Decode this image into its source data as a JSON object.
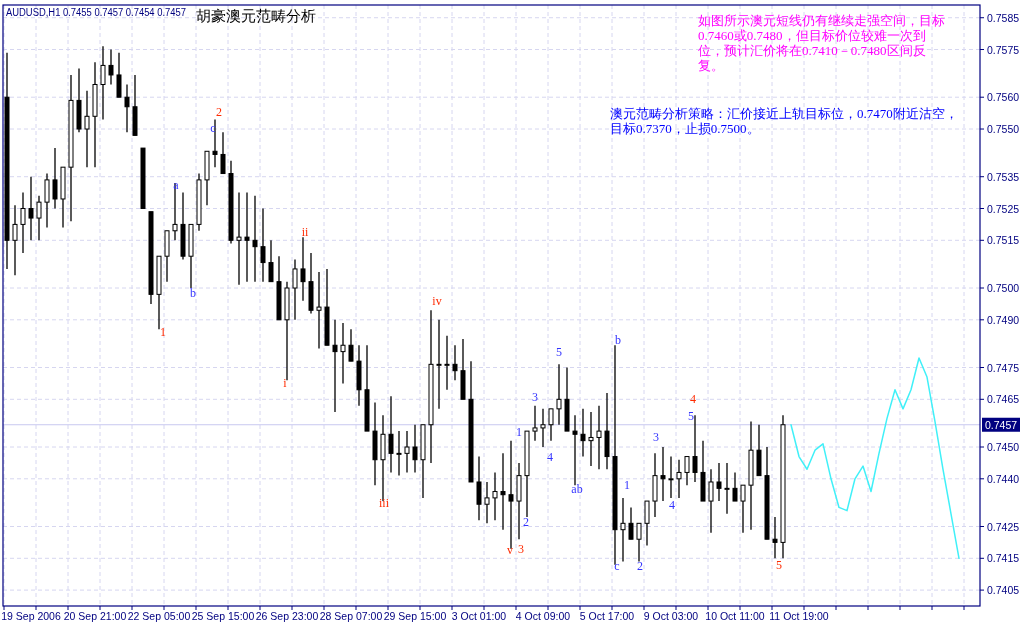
{
  "chart_data": {
    "type": "candlestick",
    "title": "胡豪澳元范畴分析",
    "subtitle": "AUDUSD,H1  0.7455 0.7457 0.7454 0.7457",
    "color": "#000000",
    "grid": true,
    "ylim": [
      0.74,
      0.7589
    ],
    "yticks": [
      0.7585,
      0.7575,
      {
        "value": 0.756,
        "label": "0.7560"
      },
      {
        "value": 0.755,
        "label": "0.7550"
      },
      0.7535,
      0.7525,
      0.7515,
      {
        "value": 0.75,
        "label": "0.7500"
      },
      {
        "value": 0.749,
        "label": "0.7490"
      },
      0.7475,
      0.7465,
      {
        "value": 0.745,
        "label": "0.7450"
      },
      {
        "value": 0.744,
        "label": "0.7440"
      },
      0.7425,
      0.7415,
      0.7405
    ],
    "ref_lines": [
      {
        "axis": "y",
        "value": 0.7457,
        "label": "0.7457",
        "color": "#c8c8f0"
      }
    ],
    "categories": [
      null,
      null,
      null,
      "19 Sep 2006",
      null,
      null,
      null,
      null,
      null,
      null,
      null,
      "20 Sep 21:00",
      null,
      null,
      null,
      null,
      null,
      null,
      null,
      "22 Sep 05:00",
      null,
      null,
      null,
      null,
      null,
      null,
      null,
      "25 Sep 15:00",
      null,
      null,
      null,
      null,
      null,
      null,
      null,
      "26 Sep 23:00",
      null,
      null,
      null,
      null,
      null,
      null,
      null,
      "28 Sep 07:00",
      null,
      null,
      null,
      null,
      null,
      null,
      null,
      "29 Sep 15:00",
      null,
      null,
      null,
      null,
      null,
      null,
      null,
      "3 Oct 01:00",
      null,
      null,
      null,
      null,
      null,
      null,
      null,
      "4 Oct 09:00",
      null,
      null,
      null,
      null,
      null,
      null,
      null,
      "5 Oct 17:00",
      null,
      null,
      null,
      null,
      null,
      null,
      null,
      "9 Oct 03:00",
      null,
      null,
      null,
      null,
      null,
      null,
      null,
      "10 Oct 11:00",
      null,
      null,
      null,
      null,
      null,
      null,
      null,
      "11 Oct 19:00",
      null,
      null,
      null,
      null,
      null,
      null,
      null,
      null,
      null,
      null,
      null,
      null,
      null,
      null,
      null,
      null,
      null,
      null,
      null,
      null,
      null,
      null
    ],
    "ohlc": [
      [
        0.756,
        0.7574,
        0.7506,
        0.7515
      ],
      [
        0.7515,
        0.7526,
        0.7504,
        0.752
      ],
      [
        0.752,
        0.753,
        0.7511,
        0.7525
      ],
      [
        0.7525,
        0.7535,
        0.7515,
        0.7522
      ],
      [
        0.7522,
        0.7529,
        0.7515,
        0.7527
      ],
      [
        0.7527,
        0.7536,
        0.7519,
        0.7534
      ],
      [
        0.7534,
        0.7544,
        0.7525,
        0.7528
      ],
      [
        0.7528,
        0.7538,
        0.7519,
        0.7538
      ],
      [
        0.7538,
        0.7567,
        0.7521,
        0.7559
      ],
      [
        0.7559,
        0.7569,
        0.7549,
        0.755
      ],
      [
        0.755,
        0.7562,
        0.7538,
        0.7554
      ],
      [
        0.7554,
        0.7571,
        0.7538,
        0.7564
      ],
      [
        0.7564,
        0.7576,
        0.7553,
        0.757
      ],
      [
        0.757,
        0.7575,
        0.7564,
        0.7567
      ],
      [
        0.7567,
        0.7574,
        0.756,
        0.756
      ],
      [
        0.756,
        0.7564,
        0.7549,
        0.7557
      ],
      [
        0.7557,
        0.7567,
        0.7548,
        0.7548
      ],
      [
        0.7544,
        0.7544,
        0.7525,
        0.7525
      ],
      [
        0.7524,
        0.7524,
        0.7495,
        0.7498
      ],
      [
        0.7498,
        0.751,
        0.7487,
        0.751
      ],
      [
        0.751,
        0.7518,
        0.7502,
        0.7518
      ],
      [
        0.7518,
        0.7533,
        0.7515,
        0.752
      ],
      [
        0.752,
        0.753,
        0.7509,
        0.751
      ],
      [
        0.751,
        0.752,
        0.75,
        0.752
      ],
      [
        0.752,
        0.7536,
        0.7518,
        0.7534
      ],
      [
        0.7534,
        0.7543,
        0.7526,
        0.7543
      ],
      [
        0.7543,
        0.7553,
        0.7538,
        0.7542
      ],
      [
        0.7542,
        0.7549,
        0.7536,
        0.7536
      ],
      [
        0.7536,
        0.754,
        0.7514,
        0.7515
      ],
      [
        0.7515,
        0.753,
        0.7501,
        0.7516
      ],
      [
        0.7516,
        0.753,
        0.7502,
        0.7515
      ],
      [
        0.7515,
        0.7529,
        0.7502,
        0.7513
      ],
      [
        0.7513,
        0.7525,
        0.7502,
        0.7508
      ],
      [
        0.7508,
        0.7515,
        0.7502,
        0.7502
      ],
      [
        0.7502,
        0.751,
        0.749,
        0.749
      ],
      [
        0.749,
        0.7502,
        0.7471,
        0.75
      ],
      [
        0.75,
        0.7509,
        0.749,
        0.7506
      ],
      [
        0.7506,
        0.7516,
        0.7496,
        0.7502
      ],
      [
        0.7502,
        0.7511,
        0.7492,
        0.7493
      ],
      [
        0.7493,
        0.7505,
        0.7481,
        0.7494
      ],
      [
        0.7494,
        0.7506,
        0.7482,
        0.7482
      ],
      [
        0.7482,
        0.749,
        0.7461,
        0.748
      ],
      [
        0.748,
        0.7489,
        0.747,
        0.7482
      ],
      [
        0.7482,
        0.7487,
        0.7477,
        0.7477
      ],
      [
        0.7477,
        0.7482,
        0.7463,
        0.7468
      ],
      [
        0.7468,
        0.7482,
        0.7455,
        0.7455
      ],
      [
        0.7455,
        0.7464,
        0.7438,
        0.7446
      ],
      [
        0.7446,
        0.746,
        0.7433,
        0.7454
      ],
      [
        0.7454,
        0.7466,
        0.7442,
        0.7448
      ],
      [
        0.7448,
        0.7455,
        0.7441,
        0.7448
      ],
      [
        0.7448,
        0.7455,
        0.7442,
        0.745
      ],
      [
        0.745,
        0.7457,
        0.7442,
        0.7446
      ],
      [
        0.7446,
        0.7457,
        0.7434,
        0.7457
      ],
      [
        0.7457,
        0.7493,
        0.7445,
        0.7476
      ],
      [
        0.7476,
        0.749,
        0.7462,
        0.7476
      ],
      [
        0.7476,
        0.7485,
        0.7468,
        0.7476
      ],
      [
        0.7476,
        0.7482,
        0.7471,
        0.7474
      ],
      [
        0.7474,
        0.7484,
        0.7465,
        0.7465
      ],
      [
        0.7465,
        0.7477,
        0.7439,
        0.7439
      ],
      [
        0.7439,
        0.7447,
        0.7427,
        0.7432
      ],
      [
        0.7432,
        0.7439,
        0.7426,
        0.7434
      ],
      [
        0.7434,
        0.7442,
        0.7427,
        0.7436
      ],
      [
        0.7436,
        0.7448,
        0.7424,
        0.7435
      ],
      [
        0.7435,
        0.7452,
        0.7418,
        0.7433
      ],
      [
        0.7433,
        0.7445,
        0.7421,
        0.7441
      ],
      [
        0.7441,
        0.7455,
        0.7428,
        0.7455
      ],
      [
        0.7455,
        0.7463,
        0.7452,
        0.7456
      ],
      [
        0.7456,
        0.7462,
        0.745,
        0.7457
      ],
      [
        0.7457,
        0.7462,
        0.7452,
        0.7462
      ],
      [
        0.7462,
        0.7476,
        0.7457,
        0.7465
      ],
      [
        0.7465,
        0.7475,
        0.7455,
        0.7455
      ],
      [
        0.7455,
        0.746,
        0.7438,
        0.7454
      ],
      [
        0.7454,
        0.7462,
        0.7447,
        0.7452
      ],
      [
        0.7452,
        0.7461,
        0.7444,
        0.7453
      ],
      [
        0.7453,
        0.7463,
        0.7443,
        0.7455
      ],
      [
        0.7455,
        0.7467,
        0.7443,
        0.7447
      ],
      [
        0.7447,
        0.7482,
        0.7413,
        0.7424
      ],
      [
        0.7424,
        0.7434,
        0.7414,
        0.7426
      ],
      [
        0.7426,
        0.7431,
        0.7421,
        0.7421
      ],
      [
        0.7421,
        0.7426,
        0.7414,
        0.7426
      ],
      [
        0.7426,
        0.7433,
        0.7419,
        0.7433
      ],
      [
        0.7433,
        0.7448,
        0.7428,
        0.7441
      ],
      [
        0.7441,
        0.745,
        0.7433,
        0.744
      ],
      [
        0.744,
        0.7447,
        0.7434,
        0.744
      ],
      [
        0.744,
        0.7446,
        0.7434,
        0.7442
      ],
      [
        0.7442,
        0.7447,
        0.7438,
        0.7447
      ],
      [
        0.7447,
        0.746,
        0.7439,
        0.7442
      ],
      [
        0.7442,
        0.7452,
        0.7433,
        0.7433
      ],
      [
        0.7433,
        0.7443,
        0.7423,
        0.7439
      ],
      [
        0.7439,
        0.7445,
        0.7433,
        0.7437
      ],
      [
        0.7437,
        0.7445,
        0.7429,
        0.7437
      ],
      [
        0.7437,
        0.7442,
        0.7433,
        0.7433
      ],
      [
        0.7433,
        0.7438,
        0.7423,
        0.7438
      ],
      [
        0.7438,
        0.7458,
        0.7424,
        0.7449
      ],
      [
        0.7449,
        0.7457,
        0.7441,
        0.7441
      ],
      [
        0.7441,
        0.745,
        0.7421,
        0.7421
      ],
      [
        0.7421,
        0.7428,
        0.7415,
        0.742
      ],
      [
        0.742,
        0.746,
        0.7415,
        0.7457
      ],
      null,
      null,
      null,
      null,
      null,
      null,
      null,
      null,
      null,
      null,
      null,
      null,
      null,
      null,
      null,
      null,
      null,
      null,
      null,
      null,
      null,
      null,
      null,
      null
    ],
    "series": [
      {
        "type": "line",
        "color": "#40f0f8",
        "values": [
          null,
          null,
          null,
          null,
          null,
          null,
          null,
          null,
          null,
          null,
          null,
          null,
          null,
          null,
          null,
          null,
          null,
          null,
          null,
          null,
          null,
          null,
          null,
          null,
          null,
          null,
          null,
          null,
          null,
          null,
          null,
          null,
          null,
          null,
          null,
          null,
          null,
          null,
          null,
          null,
          null,
          null,
          null,
          null,
          null,
          null,
          null,
          null,
          null,
          null,
          null,
          null,
          null,
          null,
          null,
          null,
          null,
          null,
          null,
          null,
          null,
          null,
          null,
          null,
          null,
          null,
          null,
          null,
          null,
          null,
          null,
          null,
          null,
          null,
          null,
          null,
          null,
          null,
          null,
          null,
          null,
          null,
          null,
          null,
          null,
          null,
          null,
          null,
          null,
          null,
          null,
          null,
          null,
          null,
          null,
          null,
          null,
          null,
          0.7457,
          0.7447,
          0.7443,
          0.7449,
          0.7451,
          0.744,
          0.7431,
          0.743,
          0.744,
          0.7444,
          0.7436,
          0.7448,
          0.7459,
          0.7468,
          0.7462,
          0.7468,
          0.7478,
          0.7472,
          0.7458,
          0.7443,
          0.7429,
          0.7415,
          null,
          null
        ]
      }
    ],
    "annotations": [
      "如图所示澳元短线仍有继续走强空间，目标0.7460或0.7480，但目标价位较难一次到位，预计汇价将在0.7410－0.7480区间反复。",
      "澳元范畴分析策略：汇价接近上轨目标位，0.7470附近沽空，目标0.7370，止损0.7500。",
      "2",
      "c",
      "a",
      "b",
      "1",
      "ii",
      "i",
      "iv",
      "iii",
      "v",
      "3",
      "1",
      "2",
      "3",
      "4",
      "5",
      "ab",
      "b",
      "c",
      "1",
      "2",
      "3",
      "4",
      "5",
      "4",
      "5"
    ]
  }
}
